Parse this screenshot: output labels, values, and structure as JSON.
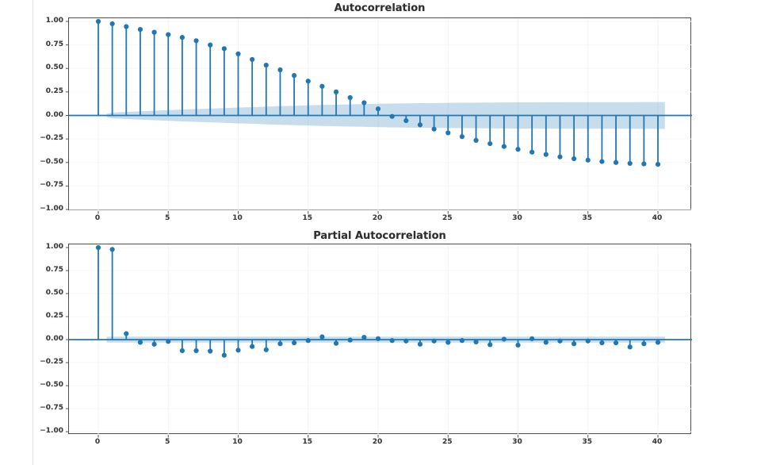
{
  "page": {
    "background": "#ffffff"
  },
  "chart_data": [
    {
      "type": "stem",
      "id": "acf",
      "title": "Autocorrelation",
      "lags": [
        0,
        1,
        2,
        3,
        4,
        5,
        6,
        7,
        8,
        9,
        10,
        11,
        12,
        13,
        14,
        15,
        16,
        17,
        18,
        19,
        20,
        21,
        22,
        23,
        24,
        25,
        26,
        27,
        28,
        29,
        30,
        31,
        32,
        33,
        34,
        35,
        36,
        37,
        38,
        39,
        40
      ],
      "values": [
        1.0,
        0.975,
        0.945,
        0.915,
        0.885,
        0.86,
        0.83,
        0.795,
        0.75,
        0.71,
        0.655,
        0.595,
        0.535,
        0.485,
        0.425,
        0.365,
        0.31,
        0.25,
        0.19,
        0.135,
        0.07,
        -0.01,
        -0.055,
        -0.1,
        -0.145,
        -0.185,
        -0.225,
        -0.265,
        -0.3,
        -0.33,
        -0.36,
        -0.39,
        -0.415,
        -0.44,
        -0.46,
        -0.475,
        -0.49,
        -0.5,
        -0.51,
        -0.515,
        -0.52
      ],
      "conf_halfwidths": [
        0,
        0.03,
        0.038,
        0.045,
        0.051,
        0.057,
        0.063,
        0.068,
        0.073,
        0.078,
        0.084,
        0.089,
        0.094,
        0.099,
        0.103,
        0.107,
        0.111,
        0.115,
        0.118,
        0.121,
        0.124,
        0.127,
        0.129,
        0.131,
        0.132,
        0.134,
        0.135,
        0.136,
        0.137,
        0.138,
        0.139,
        0.139,
        0.14,
        0.14,
        0.141,
        0.141,
        0.142,
        0.142,
        0.142,
        0.143,
        0.143
      ],
      "band_shape": "wedge",
      "band_x_range": [
        0.6,
        40.5
      ],
      "xlim": [
        -2.1,
        42.4
      ],
      "ylim": [
        -1.05,
        1.05
      ],
      "xticks": [
        0,
        5,
        10,
        15,
        20,
        25,
        30,
        35,
        40
      ],
      "xtick_labels": [
        "0",
        "5",
        "10",
        "15",
        "20",
        "25",
        "30",
        "35",
        "40"
      ],
      "yticks": [
        1.0,
        0.75,
        0.5,
        0.25,
        0.0,
        -0.25,
        -0.5,
        -0.75,
        -1.0
      ],
      "ytick_labels": [
        "1.00",
        "0.75",
        "0.50",
        "0.25",
        "0.00",
        "−0.25",
        "−0.50",
        "−0.75",
        "−1.00"
      ],
      "xlabel": "",
      "ylabel": "",
      "grid": "faint",
      "legend": "none",
      "colors": {
        "stem": "#1f77b4",
        "marker": "#1f77b4",
        "band": "#1f77b4",
        "band_opacity": 0.25,
        "zero_line": "#1f77b4",
        "grid": "#f2f2f2",
        "tick": "#555555"
      }
    },
    {
      "type": "stem",
      "id": "pacf",
      "title": "Partial Autocorrelation",
      "lags": [
        0,
        1,
        2,
        3,
        4,
        5,
        6,
        7,
        8,
        9,
        10,
        11,
        12,
        13,
        14,
        15,
        16,
        17,
        18,
        19,
        20,
        21,
        22,
        23,
        24,
        25,
        26,
        27,
        28,
        29,
        30,
        31,
        32,
        33,
        34,
        35,
        36,
        37,
        38,
        39,
        40
      ],
      "values": [
        1.0,
        0.98,
        0.065,
        -0.03,
        -0.05,
        -0.02,
        -0.12,
        -0.12,
        -0.125,
        -0.17,
        -0.115,
        -0.075,
        -0.11,
        -0.045,
        -0.035,
        -0.01,
        0.03,
        -0.04,
        -0.005,
        0.025,
        0.01,
        -0.01,
        -0.015,
        -0.05,
        -0.015,
        -0.03,
        -0.01,
        -0.025,
        -0.055,
        0.005,
        -0.06,
        0.01,
        -0.03,
        -0.015,
        -0.045,
        -0.015,
        -0.035,
        -0.035,
        -0.08,
        -0.045,
        -0.03
      ],
      "conf_halfwidths": [
        0,
        0.032,
        0.032,
        0.032,
        0.032,
        0.032,
        0.032,
        0.032,
        0.032,
        0.032,
        0.032,
        0.032,
        0.032,
        0.032,
        0.032,
        0.032,
        0.032,
        0.032,
        0.032,
        0.032,
        0.032,
        0.032,
        0.032,
        0.032,
        0.032,
        0.032,
        0.032,
        0.032,
        0.032,
        0.032,
        0.032,
        0.032,
        0.032,
        0.032,
        0.032,
        0.032,
        0.032,
        0.032,
        0.032,
        0.032,
        0.032
      ],
      "band_shape": "uniform",
      "band_x_range": [
        0.6,
        40.5
      ],
      "xlim": [
        -2.1,
        42.4
      ],
      "ylim": [
        -1.05,
        1.05
      ],
      "xticks": [
        0,
        5,
        10,
        15,
        20,
        25,
        30,
        35,
        40
      ],
      "xtick_labels": [
        "0",
        "5",
        "10",
        "15",
        "20",
        "25",
        "30",
        "35",
        "40"
      ],
      "yticks": [
        1.0,
        0.75,
        0.5,
        0.25,
        0.0,
        -0.25,
        -0.5,
        -0.75,
        -1.0
      ],
      "ytick_labels": [
        "1.00",
        "0.75",
        "0.50",
        "0.25",
        "0.00",
        "−0.25",
        "−0.50",
        "−0.75",
        "−1.00"
      ],
      "xlabel": "",
      "ylabel": "",
      "grid": "faint",
      "legend": "none",
      "colors": {
        "stem": "#1f77b4",
        "marker": "#1f77b4",
        "band": "#1f77b4",
        "band_opacity": 0.25,
        "zero_line": "#1f77b4",
        "grid": "#f2f2f2",
        "tick": "#555555"
      }
    }
  ]
}
